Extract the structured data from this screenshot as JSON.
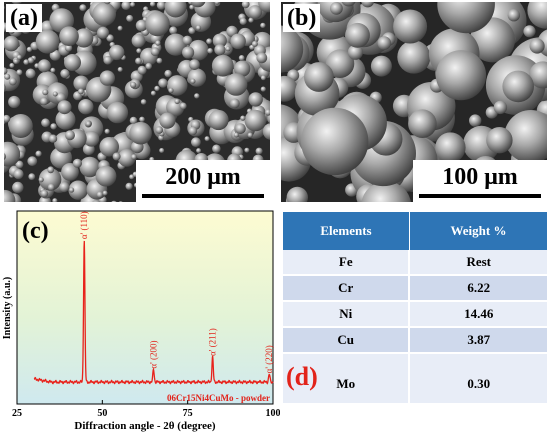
{
  "panel_a": {
    "label": "(a)",
    "scale_label": "200 μm"
  },
  "panel_b": {
    "label": "(b)",
    "scale_label": "100 μm"
  },
  "panel_c": {
    "label": "(c)",
    "sample_label": "06Cr15Ni4CuMo - powder",
    "chart_data": {
      "type": "line",
      "xlabel": "Diffraction angle - 2θ (degree)",
      "ylabel": "Intensity (a.u.)",
      "xlim": [
        25,
        100
      ],
      "x_ticks": [
        25,
        50,
        75,
        100
      ],
      "y_ticks": false,
      "series": [
        {
          "color": "#e8221b",
          "peaks": [
            {
              "x": 44.7,
              "height": 0.9,
              "label": "α' (110)"
            },
            {
              "x": 65.0,
              "height": 0.08,
              "label": "α' (200)"
            },
            {
              "x": 82.3,
              "height": 0.16,
              "label": "α' (211)"
            },
            {
              "x": 98.9,
              "height": 0.05,
              "label": "α' (220)"
            }
          ]
        }
      ]
    }
  },
  "panel_d": {
    "label": "(d)",
    "header": [
      "Elements",
      "Weight %"
    ],
    "rows": [
      [
        "Fe",
        "Rest"
      ],
      [
        "Cr",
        "6.22"
      ],
      [
        "Ni",
        "14.46"
      ],
      [
        "Cu",
        "3.87"
      ],
      [
        "Mo",
        "0.30"
      ]
    ]
  }
}
